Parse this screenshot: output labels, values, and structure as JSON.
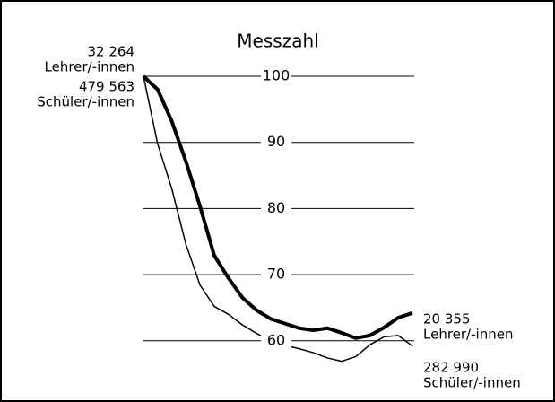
{
  "chart_data": {
    "type": "line",
    "title": "Messzahl",
    "categories": [
      null,
      null,
      null,
      null,
      null,
      null,
      null,
      null,
      null,
      null,
      null,
      null,
      null,
      null,
      null,
      null,
      null,
      null,
      null,
      null
    ],
    "series": [
      {
        "name": "Lehrer/-innen",
        "color": "#000000",
        "width": 4,
        "values": [
          100,
          98,
          93.2,
          87.1,
          80.3,
          72.9,
          69.5,
          66.5,
          64.6,
          63.3,
          62.6,
          61.9,
          61.6,
          61.9,
          61.2,
          60.4,
          60.8,
          62.0,
          63.5,
          64.2
        ]
      },
      {
        "name": "Schüler/-innen",
        "color": "#000000",
        "width": 1.5,
        "values": [
          100,
          89.8,
          83,
          74.6,
          68.4,
          65.2,
          64,
          62.4,
          61.1,
          60.0,
          59.3,
          58.8,
          58.2,
          57.4,
          56.9,
          57.6,
          59.4,
          60.6,
          60.8,
          59.2
        ]
      }
    ],
    "annotations": [
      "32 264",
      "479 563",
      "20 355",
      "282 990"
    ],
    "ylim": [
      54,
      100
    ],
    "yticks": [
      60,
      70,
      80,
      90,
      100
    ],
    "grid": true
  }
}
